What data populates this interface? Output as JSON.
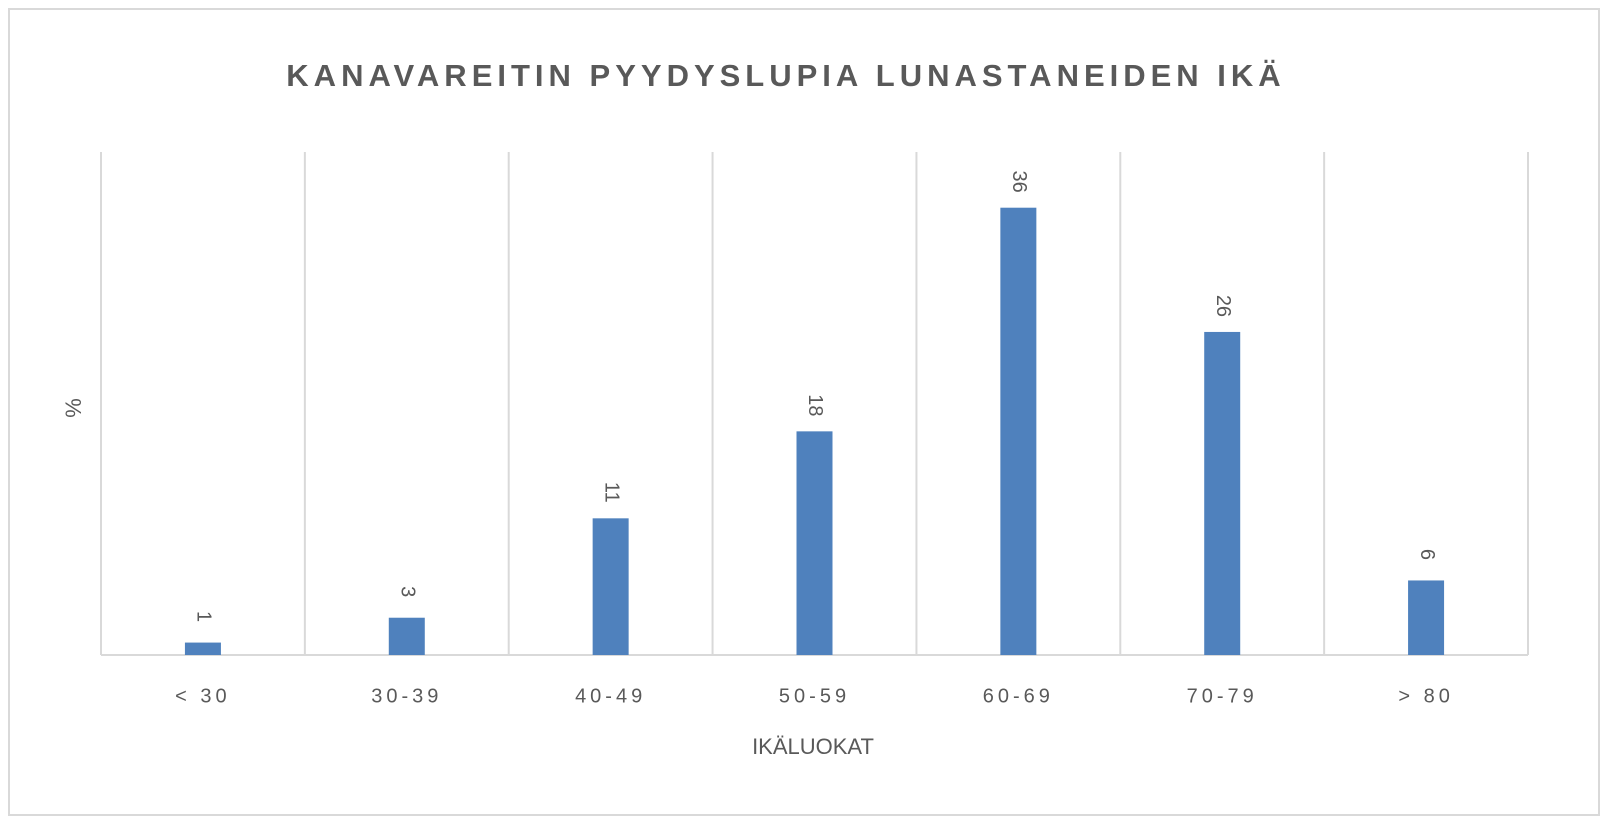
{
  "chart_data": {
    "type": "bar",
    "title": "KANAVAREITIN PYYDYSLUPIA LUNASTANEIDEN IKÄ",
    "categories": [
      "< 30",
      "30-39",
      "40-49",
      "50-59",
      "60-69",
      "70-79",
      "> 80"
    ],
    "values": [
      1,
      3,
      11,
      18,
      36,
      26,
      6
    ],
    "color": "#4f81bd",
    "ylim": [
      0,
      40
    ],
    "xlabel": "IKÄLUOKAT",
    "ylabel": "%"
  }
}
